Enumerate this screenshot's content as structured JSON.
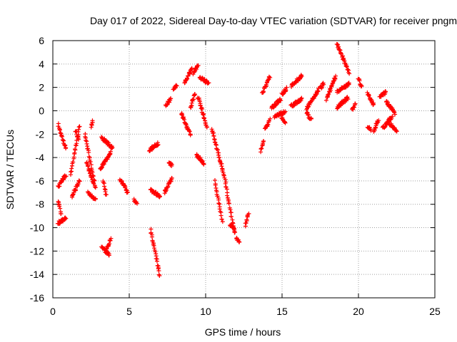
{
  "chart_data": {
    "type": "scatter",
    "title": "Day 017 of 2022, Sidereal Day-to-day VTEC variation (SDTVAR) for receiver pngm",
    "xlabel": "GPS time / hours",
    "ylabel": "SDTVAR / TECUs",
    "xlim": [
      0,
      25
    ],
    "ylim": [
      -16,
      6
    ],
    "x_ticks": [
      0,
      5,
      10,
      15,
      20,
      25
    ],
    "y_ticks": [
      -16,
      -14,
      -12,
      -10,
      -8,
      -6,
      -4,
      -2,
      0,
      2,
      4,
      6
    ],
    "grid": true,
    "marker": "+",
    "marker_color": "#ff0000",
    "grid_color": "#a0a0a0",
    "series": [
      {
        "name": "SDTVAR",
        "segments": [
          {
            "x": [
              0.35,
              0.85
            ],
            "y": [
              -1.2,
              -3.2
            ]
          },
          {
            "x": [
              0.35,
              0.85
            ],
            "y": [
              -6.5,
              -5.5
            ]
          },
          {
            "x": [
              0.35,
              0.55
            ],
            "y": [
              -7.8,
              -8.8
            ]
          },
          {
            "x": [
              0.35,
              0.85
            ],
            "y": [
              -9.6,
              -9.2
            ]
          },
          {
            "x": [
              1.15,
              1.75
            ],
            "y": [
              -5.5,
              -1.3
            ]
          },
          {
            "x": [
              1.25,
              1.75
            ],
            "y": [
              -7.3,
              -6.0
            ]
          },
          {
            "x": [
              1.5,
              1.7
            ],
            "y": [
              -1.7,
              -2.5
            ]
          },
          {
            "x": [
              2.1,
              2.8
            ],
            "y": [
              -2.0,
              -6.6
            ]
          },
          {
            "x": [
              2.2,
              2.7
            ],
            "y": [
              -4.5,
              -6.2
            ]
          },
          {
            "x": [
              2.3,
              2.8
            ],
            "y": [
              -7.0,
              -7.6
            ]
          },
          {
            "x": [
              2.5,
              2.6
            ],
            "y": [
              -1.3,
              -0.9
            ]
          },
          {
            "x": [
              3.2,
              3.9
            ],
            "y": [
              -2.3,
              -3.2
            ]
          },
          {
            "x": [
              3.1,
              3.8
            ],
            "y": [
              -5.0,
              -3.5
            ]
          },
          {
            "x": [
              3.3,
              3.5
            ],
            "y": [
              -6.0,
              -7.2
            ]
          },
          {
            "x": [
              3.2,
              3.7
            ],
            "y": [
              -11.7,
              -12.3
            ]
          },
          {
            "x": [
              3.5,
              3.8
            ],
            "y": [
              -11.9,
              -11.0
            ]
          },
          {
            "x": [
              4.4,
              4.9
            ],
            "y": [
              -5.8,
              -7.0
            ]
          },
          {
            "x": [
              5.3,
              5.5
            ],
            "y": [
              -7.6,
              -7.9
            ]
          },
          {
            "x": [
              6.3,
              6.9
            ],
            "y": [
              -3.4,
              -2.8
            ]
          },
          {
            "x": [
              6.4,
              7.0
            ],
            "y": [
              -6.8,
              -7.3
            ]
          },
          {
            "x": [
              6.4,
              7.0
            ],
            "y": [
              -10.2,
              -14.1
            ]
          },
          {
            "x": [
              7.3,
              7.8
            ],
            "y": [
              -7.0,
              -5.8
            ]
          },
          {
            "x": [
              7.6,
              7.8
            ],
            "y": [
              -4.4,
              -4.7
            ]
          },
          {
            "x": [
              7.4,
              7.7
            ],
            "y": [
              0.5,
              1.0
            ]
          },
          {
            "x": [
              7.9,
              8.1
            ],
            "y": [
              1.9,
              2.2
            ]
          },
          {
            "x": [
              8.4,
              9.0
            ],
            "y": [
              -0.2,
              -2.0
            ]
          },
          {
            "x": [
              8.6,
              9.1
            ],
            "y": [
              2.4,
              3.6
            ]
          },
          {
            "x": [
              9.0,
              9.3
            ],
            "y": [
              0.2,
              1.5
            ]
          },
          {
            "x": [
              9.2,
              9.5
            ],
            "y": [
              3.2,
              3.9
            ]
          },
          {
            "x": [
              9.4,
              9.9
            ],
            "y": [
              -3.8,
              -4.5
            ]
          },
          {
            "x": [
              9.5,
              10.1
            ],
            "y": [
              1.2,
              -1.5
            ]
          },
          {
            "x": [
              9.6,
              10.2
            ],
            "y": [
              2.8,
              2.4
            ]
          },
          {
            "x": [
              10.4,
              11.3
            ],
            "y": [
              -1.5,
              -6.0
            ]
          },
          {
            "x": [
              10.6,
              11.1
            ],
            "y": [
              -6.0,
              -9.5
            ]
          },
          {
            "x": [
              11.3,
              11.9
            ],
            "y": [
              -6.3,
              -10.5
            ]
          },
          {
            "x": [
              11.6,
              11.9
            ],
            "y": [
              -9.7,
              -10.2
            ]
          },
          {
            "x": [
              12.0,
              12.2
            ],
            "y": [
              -10.9,
              -11.2
            ]
          },
          {
            "x": [
              12.6,
              12.8
            ],
            "y": [
              -9.8,
              -8.8
            ]
          },
          {
            "x": [
              13.6,
              13.8
            ],
            "y": [
              -3.4,
              -2.6
            ]
          },
          {
            "x": [
              13.7,
              14.2
            ],
            "y": [
              1.5,
              2.9
            ]
          },
          {
            "x": [
              13.9,
              14.2
            ],
            "y": [
              -1.6,
              -0.8
            ]
          },
          {
            "x": [
              14.3,
              14.9
            ],
            "y": [
              0.2,
              1.0
            ]
          },
          {
            "x": [
              14.5,
              15.2
            ],
            "y": [
              -0.5,
              -0.1
            ]
          },
          {
            "x": [
              15.0,
              15.3
            ],
            "y": [
              1.4,
              1.9
            ]
          },
          {
            "x": [
              15.0,
              15.2
            ],
            "y": [
              -0.6,
              -1.1
            ]
          },
          {
            "x": [
              15.6,
              16.3
            ],
            "y": [
              2.1,
              3.0
            ]
          },
          {
            "x": [
              15.6,
              16.3
            ],
            "y": [
              0.4,
              1.0
            ]
          },
          {
            "x": [
              16.6,
              17.4
            ],
            "y": [
              0.2,
              1.8
            ]
          },
          {
            "x": [
              16.6,
              16.9
            ],
            "y": [
              -0.2,
              -0.8
            ]
          },
          {
            "x": [
              17.5,
              17.7
            ],
            "y": [
              1.9,
              2.3
            ]
          },
          {
            "x": [
              17.9,
              18.5
            ],
            "y": [
              1.0,
              2.9
            ]
          },
          {
            "x": [
              18.6,
              19.4
            ],
            "y": [
              5.7,
              3.2
            ]
          },
          {
            "x": [
              18.6,
              19.4
            ],
            "y": [
              1.6,
              2.3
            ]
          },
          {
            "x": [
              18.6,
              19.3
            ],
            "y": [
              0.3,
              1.1
            ]
          },
          {
            "x": [
              19.6,
              19.8
            ],
            "y": [
              0.1,
              0.6
            ]
          },
          {
            "x": [
              20.0,
              20.2
            ],
            "y": [
              2.8,
              2.0
            ]
          },
          {
            "x": [
              20.6,
              21.0
            ],
            "y": [
              1.5,
              0.5
            ]
          },
          {
            "x": [
              20.6,
              20.8
            ],
            "y": [
              -1.4,
              -1.6
            ]
          },
          {
            "x": [
              21.0,
              21.3
            ],
            "y": [
              -1.8,
              -0.8
            ]
          },
          {
            "x": [
              21.4,
              21.8
            ],
            "y": [
              1.2,
              1.6
            ]
          },
          {
            "x": [
              21.6,
              22.2
            ],
            "y": [
              -1.5,
              -0.5
            ]
          },
          {
            "x": [
              21.8,
              22.4
            ],
            "y": [
              0.8,
              -0.2
            ]
          },
          {
            "x": [
              22.0,
              22.5
            ],
            "y": [
              -1.0,
              -1.8
            ]
          }
        ]
      }
    ]
  }
}
